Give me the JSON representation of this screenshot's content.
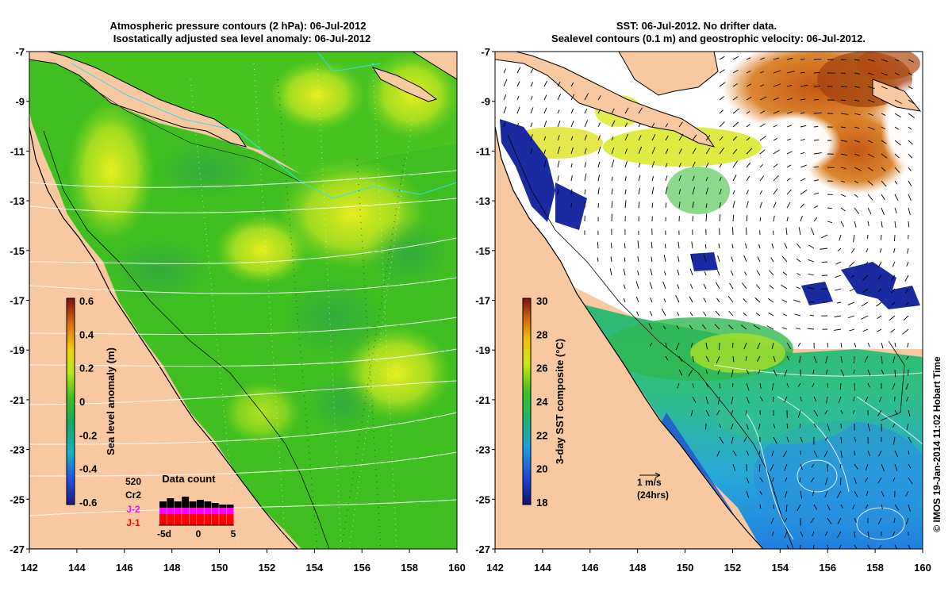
{
  "left_panel": {
    "title_line1": "Atmospheric pressure contours (2 hPa): 06-Jul-2012",
    "title_line2": "Isostatically adjusted sea level anomaly: 06-Jul-2012",
    "colorbar": {
      "label": "Sea level anomaly (m)",
      "ticks": [
        "0.6",
        "0.4",
        "0.2",
        "0",
        "-0.2",
        "-0.4",
        "-0.6"
      ],
      "range": [
        -0.6,
        0.6
      ]
    },
    "data_count": {
      "title": "Data count",
      "x_ticks": [
        "-5d",
        "0",
        "5"
      ],
      "legend": [
        {
          "label": "520",
          "color": "#000000"
        },
        {
          "label": "Cr2",
          "color": "#000000"
        },
        {
          "label": "J-2",
          "color": "#ff00ff"
        },
        {
          "label": "J-1",
          "color": "#ff0000"
        }
      ]
    }
  },
  "right_panel": {
    "title_line1": "SST: 06-Jul-2012. No drifter data.",
    "title_line2": "Sealevel contours (0.1 m) and geostrophic velocity: 06-Jul-2012.",
    "colorbar": {
      "label": "3-day SST composite (°C)",
      "ticks": [
        "30",
        "28",
        "26",
        "24",
        "22",
        "20",
        "18"
      ],
      "range": [
        18,
        30
      ]
    },
    "velocity_scale": {
      "line1": "1 m/s",
      "line2": "(24hrs)"
    }
  },
  "axes": {
    "y_ticks": [
      "-7",
      "-9",
      "-11",
      "-13",
      "-15",
      "-17",
      "-19",
      "-21",
      "-23",
      "-25",
      "-27"
    ],
    "x_ticks": [
      "142",
      "144",
      "146",
      "148",
      "150",
      "152",
      "154",
      "156",
      "158",
      "160"
    ],
    "lon_range": [
      142,
      160
    ],
    "lat_range": [
      -27,
      -7
    ]
  },
  "credit": "© IMOS 19-Jan-2014 11:02 Hobart Time",
  "colors": {
    "land": "#f8c8a0",
    "ocean_green": "#40c020",
    "high_yellow": "#e8f020",
    "cloud_white": "#ffffff",
    "warm_orange": "#d06810",
    "cool_blue": "#2090e0"
  }
}
